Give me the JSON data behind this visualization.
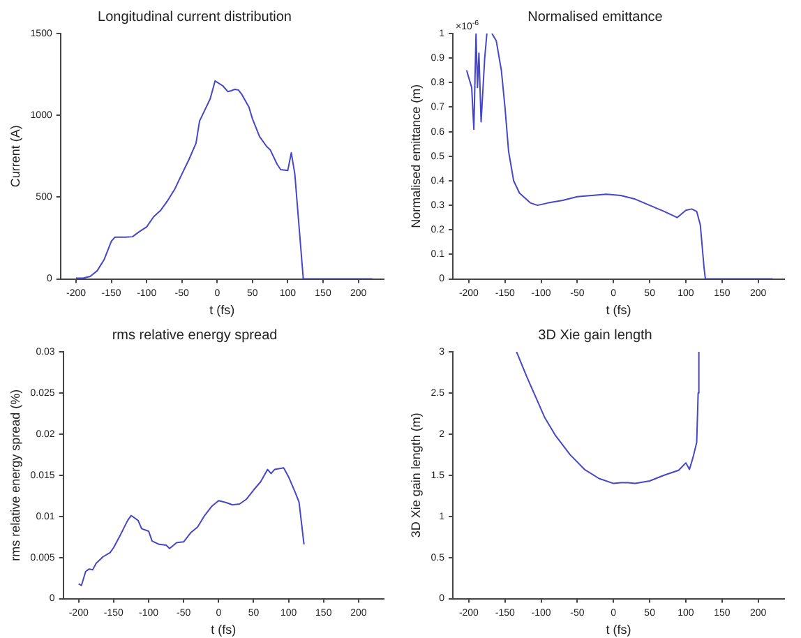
{
  "chart_data": [
    {
      "type": "line",
      "title": "Longitudinal current distribution",
      "xlabel": "t (fs)",
      "ylabel": "Current (A)",
      "xlim": [
        -222,
        236
      ],
      "xticks": [
        -200,
        -150,
        -100,
        -50,
        0,
        50,
        100,
        150,
        200
      ],
      "ylim": [
        0,
        1500
      ],
      "yticks": [
        0,
        500,
        1000,
        1500
      ],
      "grid": false,
      "legend": false,
      "marker": "none",
      "series": [
        {
          "color": "#4646c8",
          "x": [
            -200,
            -190,
            -180,
            -170,
            -160,
            -150,
            -145,
            -130,
            -120,
            -110,
            -100,
            -90,
            -80,
            -70,
            -60,
            -50,
            -40,
            -30,
            -25,
            -20,
            -10,
            -3,
            0,
            8,
            15,
            20,
            25,
            30,
            35,
            45,
            50,
            60,
            70,
            75,
            85,
            90,
            100,
            105,
            110,
            115,
            122,
            220
          ],
          "values": [
            5,
            5,
            15,
            50,
            120,
            230,
            255,
            255,
            258,
            290,
            318,
            380,
            420,
            480,
            550,
            641,
            730,
            830,
            965,
            1010,
            1100,
            1210,
            1202,
            1180,
            1145,
            1150,
            1159,
            1155,
            1127,
            1050,
            978,
            870,
            810,
            790,
            700,
            668,
            663,
            771,
            641,
            372,
            0,
            0
          ]
        }
      ]
    },
    {
      "type": "line",
      "title": "Normalised emittance",
      "xlabel": "t (fs)",
      "ylabel": "Normalised emittance (m)",
      "annotations": [
        "×10$^{-6}$"
      ],
      "xlim": [
        -222,
        236
      ],
      "xticks": [
        -200,
        -150,
        -100,
        -50,
        0,
        50,
        100,
        150,
        200
      ],
      "ylim": [
        0,
        1
      ],
      "yticks": [
        0,
        0.1,
        0.2,
        0.3,
        0.4,
        0.5,
        0.6,
        0.7,
        0.8,
        0.9,
        1
      ],
      "grid": false,
      "legend": false,
      "marker": "none",
      "series": [
        {
          "color": "#4646c8",
          "x": [
            -203,
            -196,
            -193,
            -190,
            -188,
            -186,
            -183,
            -178,
            -175,
            -172,
            -168,
            -162,
            -155,
            -150,
            -145,
            -138,
            -130,
            -115,
            -105,
            -90,
            -70,
            -50,
            -30,
            -10,
            10,
            30,
            50,
            70,
            88,
            100,
            108,
            115,
            120,
            125,
            127,
            220
          ],
          "values": [
            0.85,
            0.78,
            0.61,
            1.0,
            0.78,
            0.92,
            0.64,
            0.9,
            1.0,
            null,
            1.0,
            0.97,
            0.85,
            0.7,
            0.52,
            0.4,
            0.35,
            0.31,
            0.3,
            0.31,
            0.32,
            0.335,
            0.34,
            0.345,
            0.34,
            0.325,
            0.3,
            0.275,
            0.25,
            0.28,
            0.285,
            0.275,
            0.22,
            0.05,
            0,
            0
          ]
        }
      ]
    },
    {
      "type": "line",
      "title": "rms relative energy spread",
      "xlabel": "t (fs)",
      "ylabel": "rms relative energy spread (%)",
      "xlim": [
        -222,
        236
      ],
      "xticks": [
        -200,
        -150,
        -100,
        -50,
        0,
        50,
        100,
        150,
        200
      ],
      "ylim": [
        0,
        0.03
      ],
      "yticks": [
        0,
        0.005,
        0.01,
        0.015,
        0.02,
        0.025,
        0.03
      ],
      "grid": false,
      "legend": false,
      "marker": "none",
      "series": [
        {
          "color": "#4646c8",
          "x": [
            -200,
            -196,
            -190,
            -185,
            -180,
            -175,
            -165,
            -155,
            -150,
            -140,
            -130,
            -125,
            -115,
            -110,
            -100,
            -95,
            -85,
            -75,
            -70,
            -60,
            -50,
            -40,
            -30,
            -20,
            -10,
            0,
            10,
            20,
            30,
            40,
            50,
            60,
            70,
            75,
            80,
            93,
            100,
            110,
            115,
            122
          ],
          "values": [
            0.0018,
            0.0016,
            0.0033,
            0.0036,
            0.0035,
            0.0043,
            0.0051,
            0.0056,
            0.0062,
            0.0078,
            0.0095,
            0.0101,
            0.0095,
            0.0085,
            0.0082,
            0.007,
            0.0066,
            0.0065,
            0.0061,
            0.0068,
            0.0069,
            0.008,
            0.0087,
            0.0101,
            0.0112,
            0.0119,
            0.0117,
            0.0114,
            0.0115,
            0.0121,
            0.0132,
            0.0142,
            0.0157,
            0.0152,
            0.0157,
            0.0159,
            0.0148,
            0.0128,
            0.0117,
            0.0066
          ]
        }
      ]
    },
    {
      "type": "line",
      "title": "3D Xie gain length",
      "xlabel": "t (fs)",
      "ylabel": "3D Xie gain length (m)",
      "xlim": [
        -222,
        236
      ],
      "xticks": [
        -200,
        -150,
        -100,
        -50,
        0,
        50,
        100,
        150,
        200
      ],
      "ylim": [
        0,
        3
      ],
      "yticks": [
        0,
        0.5,
        1,
        1.5,
        2,
        2.5,
        3
      ],
      "grid": false,
      "legend": false,
      "marker": "none",
      "series": [
        {
          "color": "#4646c8",
          "x": [
            -134,
            -120,
            -105,
            -95,
            -80,
            -60,
            -40,
            -20,
            0,
            10,
            20,
            30,
            50,
            70,
            90,
            100,
            105,
            110,
            115,
            117,
            118
          ],
          "values": [
            3.0,
            2.7,
            2.4,
            2.2,
            1.98,
            1.75,
            1.57,
            1.46,
            1.4,
            1.41,
            1.41,
            1.4,
            1.43,
            1.5,
            1.56,
            1.65,
            1.57,
            1.72,
            1.9,
            2.5,
            3.0
          ]
        }
      ]
    }
  ]
}
